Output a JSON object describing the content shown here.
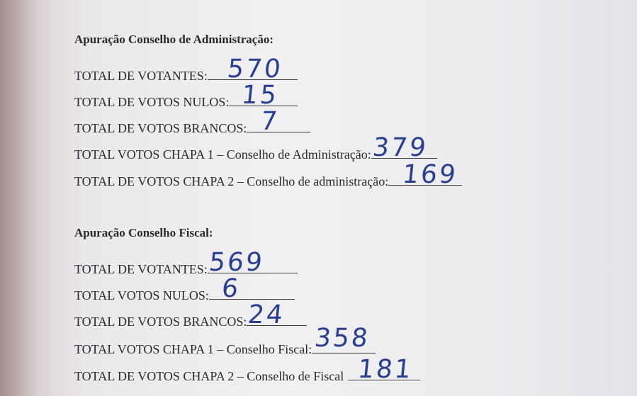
{
  "sections": [
    {
      "title": "Apuração Conselho de Administração:",
      "rows": [
        {
          "label": "TOTAL DE VOTANTES:",
          "value": "570"
        },
        {
          "label": "TOTAL DE VOTOS NULOS:",
          "value": "15"
        },
        {
          "label": "TOTAL DE VOTOS BRANCOS:",
          "value": "7"
        },
        {
          "label": "TOTAL VOTOS CHAPA 1 – Conselho de Administração:",
          "value": "379"
        },
        {
          "label": "TOTAL DE VOTOS CHAPA 2 – Conselho de administração:",
          "value": "169"
        }
      ]
    },
    {
      "title": "Apuração Conselho Fiscal:",
      "rows": [
        {
          "label": "TOTAL DE VOTANTES:",
          "value": "569"
        },
        {
          "label": "TOTAL VOTOS NULOS:",
          "value": "6"
        },
        {
          "label": "TOTAL DE VOTOS BRANCOS:",
          "value": "24"
        },
        {
          "label": "TOTAL VOTOS CHAPA 1 – Conselho Fiscal:",
          "value": "358"
        },
        {
          "label": "TOTAL DE VOTOS CHAPA 2 – Conselho de Fiscal",
          "value": "181"
        }
      ]
    }
  ],
  "colors": {
    "ink": "#2b3f8f",
    "paper": "#efeef1"
  }
}
